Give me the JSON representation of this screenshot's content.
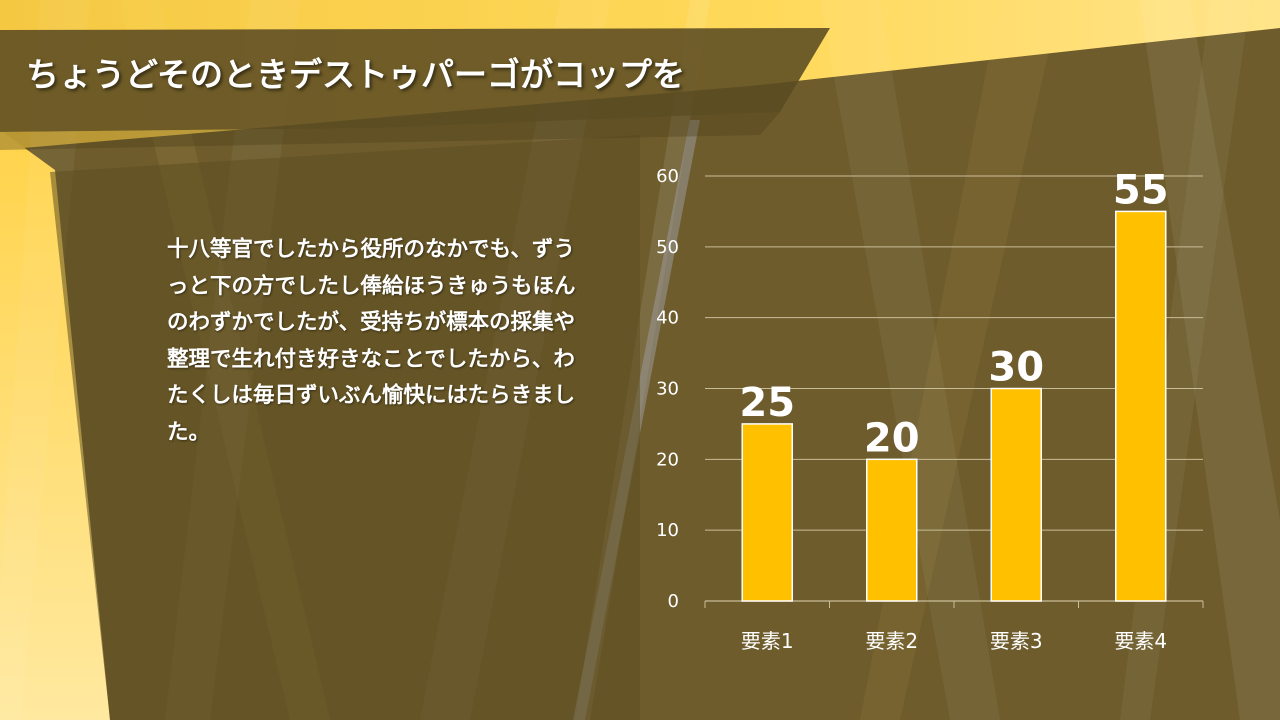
{
  "slide": {
    "title": "ちょうどそのときデストゥパーゴがコップを",
    "body": "十八等官でしたから役所のなかでも、ずうっと下の方でしたし俸給ほうきゅうもほんのわずかでしたが、受持ちが標本の採集や整理で生れ付き好きなことでしたから、わたくしは毎日ずいぶん愉快にはたらきました。"
  },
  "colors": {
    "background": "#6e5c2c",
    "bar": "#ffc000",
    "accent_yellow": "#ffd54a",
    "gridline": "#c9bd98"
  },
  "chart_data": {
    "type": "bar",
    "categories": [
      "要素1",
      "要素2",
      "要素3",
      "要素4"
    ],
    "series": [
      {
        "values": [
          25,
          20,
          30,
          55
        ]
      }
    ],
    "data_labels": [
      "25",
      "20",
      "30",
      "55"
    ],
    "y_ticks": [
      "0",
      "10",
      "20",
      "30",
      "40",
      "50",
      "60"
    ],
    "ylim": [
      0,
      60
    ],
    "grid": true,
    "legend": "none",
    "title": "",
    "xlabel": "",
    "ylabel": ""
  }
}
